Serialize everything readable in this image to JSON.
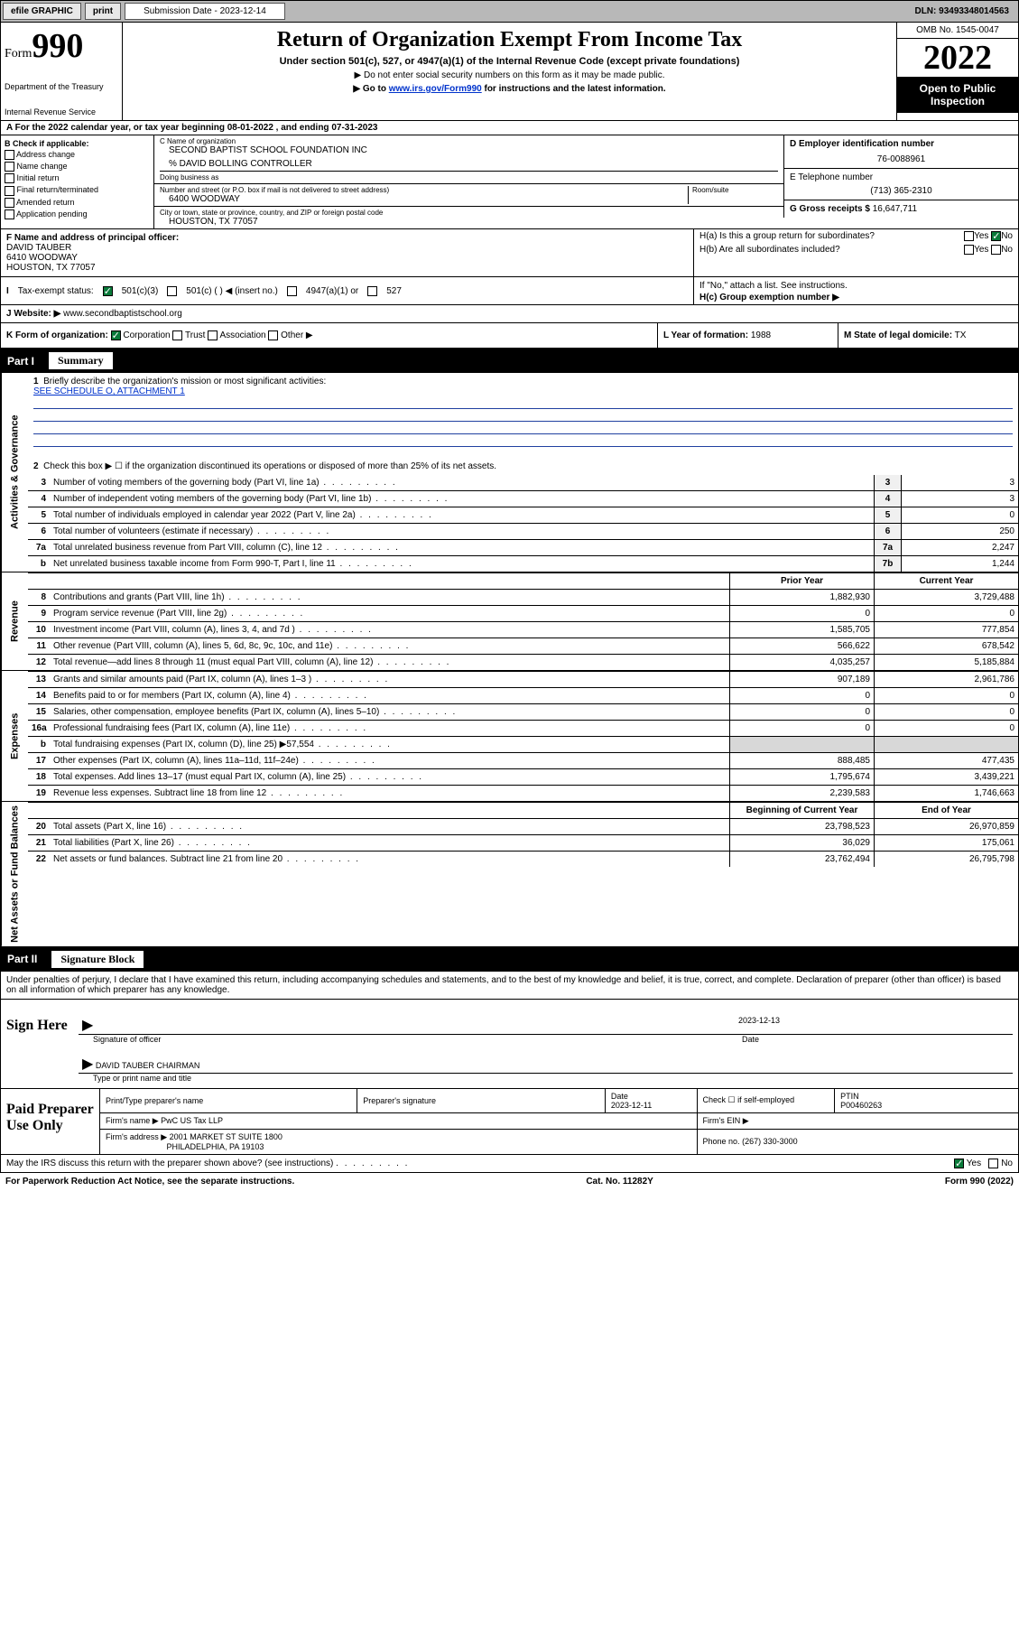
{
  "topbar": {
    "efile": "efile GRAPHIC",
    "print": "print",
    "submission_label": "Submission Date - 2023-12-14",
    "dln": "DLN: 93493348014563"
  },
  "header": {
    "form_prefix": "Form",
    "form_num": "990",
    "dept": "Department of the Treasury",
    "irs": "Internal Revenue Service",
    "title": "Return of Organization Exempt From Income Tax",
    "sub1": "Under section 501(c), 527, or 4947(a)(1) of the Internal Revenue Code (except private foundations)",
    "sub2": "▶ Do not enter social security numbers on this form as it may be made public.",
    "sub3_pre": "▶ Go to ",
    "sub3_link": "www.irs.gov/Form990",
    "sub3_post": " for instructions and the latest information.",
    "omb": "OMB No. 1545-0047",
    "year": "2022",
    "inspect": "Open to Public Inspection"
  },
  "row_a": "A  For the 2022 calendar year, or tax year beginning 08-01-2022   , and ending 07-31-2023",
  "col_b": {
    "title": "B Check if applicable:",
    "items": [
      "Address change",
      "Name change",
      "Initial return",
      "Final return/terminated",
      "Amended return",
      "Application pending"
    ]
  },
  "col_c": {
    "name_lbl": "C Name of organization",
    "name": "SECOND BAPTIST SCHOOL FOUNDATION INC",
    "care_of": "% DAVID BOLLING CONTROLLER",
    "dba": "Doing business as",
    "addr_lbl": "Number and street (or P.O. box if mail is not delivered to street address)",
    "room_lbl": "Room/suite",
    "addr": "6400 WOODWAY",
    "city_lbl": "City or town, state or province, country, and ZIP or foreign postal code",
    "city": "HOUSTON, TX  77057"
  },
  "col_de": {
    "d_lbl": "D Employer identification number",
    "d_val": "76-0088961",
    "e_lbl": "E Telephone number",
    "e_val": "(713) 365-2310",
    "g_lbl": "G Gross receipts $",
    "g_val": "16,647,711"
  },
  "row_f": {
    "lbl": "F Name and address of principal officer:",
    "name": "DAVID TAUBER",
    "addr1": "6410 WOODWAY",
    "addr2": "HOUSTON, TX  77057"
  },
  "row_h": {
    "ha": "H(a)  Is this a group return for subordinates?",
    "hb": "H(b)  Are all subordinates included?",
    "hb_note": "If \"No,\" attach a list. See instructions.",
    "hc": "H(c)  Group exemption number ▶",
    "yes": "Yes",
    "no": "No"
  },
  "row_i": {
    "lbl": "Tax-exempt status:",
    "opts": [
      "501(c)(3)",
      "501(c) (  ) ◀ (insert no.)",
      "4947(a)(1) or",
      "527"
    ]
  },
  "row_j": {
    "lbl": "Website: ▶",
    "val": "www.secondbaptistschool.org"
  },
  "row_k": {
    "lbl": "K Form of organization:",
    "opts": [
      "Corporation",
      "Trust",
      "Association",
      "Other ▶"
    ],
    "l_lbl": "L Year of formation:",
    "l_val": "1988",
    "m_lbl": "M State of legal domicile:",
    "m_val": "TX"
  },
  "part1": {
    "label": "Part I",
    "title": "Summary"
  },
  "mission": {
    "num": "1",
    "lbl": "Briefly describe the organization's mission or most significant activities:",
    "val": "SEE SCHEDULE O, ATTACHMENT 1"
  },
  "line2": {
    "num": "2",
    "lbl": "Check this box ▶ ☐  if the organization discontinued its operations or disposed of more than 25% of its net assets."
  },
  "governance_rows": [
    {
      "num": "3",
      "desc": "Number of voting members of the governing body (Part VI, line 1a)",
      "box": "3",
      "val": "3"
    },
    {
      "num": "4",
      "desc": "Number of independent voting members of the governing body (Part VI, line 1b)",
      "box": "4",
      "val": "3"
    },
    {
      "num": "5",
      "desc": "Total number of individuals employed in calendar year 2022 (Part V, line 2a)",
      "box": "5",
      "val": "0"
    },
    {
      "num": "6",
      "desc": "Total number of volunteers (estimate if necessary)",
      "box": "6",
      "val": "250"
    },
    {
      "num": "7a",
      "desc": "Total unrelated business revenue from Part VIII, column (C), line 12",
      "box": "7a",
      "val": "2,247"
    },
    {
      "num": "b",
      "desc": "Net unrelated business taxable income from Form 990-T, Part I, line 11",
      "box": "7b",
      "val": "1,244"
    }
  ],
  "col_headers": {
    "prior": "Prior Year",
    "current": "Current Year"
  },
  "revenue_rows": [
    {
      "num": "8",
      "desc": "Contributions and grants (Part VIII, line 1h)",
      "prior": "1,882,930",
      "curr": "3,729,488"
    },
    {
      "num": "9",
      "desc": "Program service revenue (Part VIII, line 2g)",
      "prior": "0",
      "curr": "0"
    },
    {
      "num": "10",
      "desc": "Investment income (Part VIII, column (A), lines 3, 4, and 7d )",
      "prior": "1,585,705",
      "curr": "777,854"
    },
    {
      "num": "11",
      "desc": "Other revenue (Part VIII, column (A), lines 5, 6d, 8c, 9c, 10c, and 11e)",
      "prior": "566,622",
      "curr": "678,542"
    },
    {
      "num": "12",
      "desc": "Total revenue—add lines 8 through 11 (must equal Part VIII, column (A), line 12)",
      "prior": "4,035,257",
      "curr": "5,185,884"
    }
  ],
  "expense_rows": [
    {
      "num": "13",
      "desc": "Grants and similar amounts paid (Part IX, column (A), lines 1–3 )",
      "prior": "907,189",
      "curr": "2,961,786"
    },
    {
      "num": "14",
      "desc": "Benefits paid to or for members (Part IX, column (A), line 4)",
      "prior": "0",
      "curr": "0"
    },
    {
      "num": "15",
      "desc": "Salaries, other compensation, employee benefits (Part IX, column (A), lines 5–10)",
      "prior": "0",
      "curr": "0"
    },
    {
      "num": "16a",
      "desc": "Professional fundraising fees (Part IX, column (A), line 11e)",
      "prior": "0",
      "curr": "0"
    },
    {
      "num": "b",
      "desc": "Total fundraising expenses (Part IX, column (D), line 25) ▶57,554",
      "prior": "",
      "curr": ""
    },
    {
      "num": "17",
      "desc": "Other expenses (Part IX, column (A), lines 11a–11d, 11f–24e)",
      "prior": "888,485",
      "curr": "477,435"
    },
    {
      "num": "18",
      "desc": "Total expenses. Add lines 13–17 (must equal Part IX, column (A), line 25)",
      "prior": "1,795,674",
      "curr": "3,439,221"
    },
    {
      "num": "19",
      "desc": "Revenue less expenses. Subtract line 18 from line 12",
      "prior": "2,239,583",
      "curr": "1,746,663"
    }
  ],
  "balance_headers": {
    "begin": "Beginning of Current Year",
    "end": "End of Year"
  },
  "balance_rows": [
    {
      "num": "20",
      "desc": "Total assets (Part X, line 16)",
      "prior": "23,798,523",
      "curr": "26,970,859"
    },
    {
      "num": "21",
      "desc": "Total liabilities (Part X, line 26)",
      "prior": "36,029",
      "curr": "175,061"
    },
    {
      "num": "22",
      "desc": "Net assets or fund balances. Subtract line 21 from line 20",
      "prior": "23,762,494",
      "curr": "26,795,798"
    }
  ],
  "part2": {
    "label": "Part II",
    "title": "Signature Block"
  },
  "sig_decl": "Under penalties of perjury, I declare that I have examined this return, including accompanying schedules and statements, and to the best of my knowledge and belief, it is true, correct, and complete. Declaration of preparer (other than officer) is based on all information of which preparer has any knowledge.",
  "sign_here": {
    "label": "Sign Here",
    "sig_officer": "Signature of officer",
    "date_lbl": "Date",
    "date_val": "2023-12-13",
    "name": "DAVID TAUBER CHAIRMAN",
    "name_lbl": "Type or print name and title"
  },
  "paid_prep": {
    "label": "Paid Preparer Use Only",
    "h1": "Print/Type preparer's name",
    "h2": "Preparer's signature",
    "h3": "Date",
    "date": "2023-12-11",
    "h4": "Check ☐ if self-employed",
    "h5": "PTIN",
    "ptin": "P00460263",
    "firm_lbl": "Firm's name   ▶",
    "firm": "PwC US Tax LLP",
    "ein_lbl": "Firm's EIN ▶",
    "addr_lbl": "Firm's address ▶",
    "addr1": "2001 MARKET ST SUITE 1800",
    "addr2": "PHILADELPHIA, PA  19103",
    "phone_lbl": "Phone no.",
    "phone": "(267) 330-3000"
  },
  "footer": {
    "discuss": "May the IRS discuss this return with the preparer shown above? (see instructions)",
    "yes": "Yes",
    "no": "No",
    "paperwork": "For Paperwork Reduction Act Notice, see the separate instructions.",
    "cat": "Cat. No. 11282Y",
    "form": "Form 990 (2022)"
  },
  "vtabs": {
    "gov": "Activities & Governance",
    "rev": "Revenue",
    "exp": "Expenses",
    "bal": "Net Assets or Fund Balances"
  }
}
